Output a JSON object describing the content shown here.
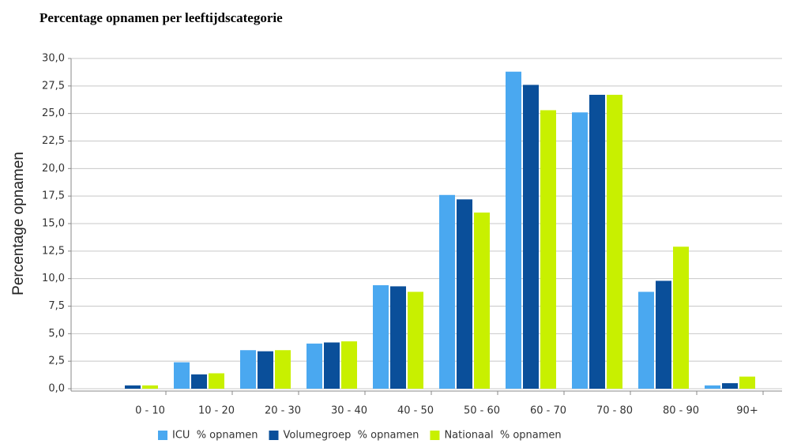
{
  "chart_data": {
    "type": "bar",
    "title": "Percentage opnamen per leeftijdscategorie",
    "y_label": "Percentage opnamen",
    "categories": [
      "0 - 10",
      "10 - 20",
      "20 - 30",
      "30 - 40",
      "40 - 50",
      "50 - 60",
      "60 - 70",
      "70 - 80",
      "80 - 90",
      "90+"
    ],
    "series": [
      {
        "name": "ICU  % opnamen",
        "color": "#4aa8f0",
        "values": [
          0,
          2.4,
          3.5,
          4.1,
          9.4,
          17.6,
          28.8,
          25.1,
          8.8,
          0.3
        ]
      },
      {
        "name": "Volumegroep  % opnamen",
        "color": "#0a4f9a",
        "values": [
          0.3,
          1.3,
          3.4,
          4.2,
          9.3,
          17.2,
          27.6,
          26.7,
          9.8,
          0.5
        ]
      },
      {
        "name": "Nationaal  % opnamen",
        "color": "#c8f000",
        "values": [
          0.3,
          1.4,
          3.5,
          4.3,
          8.8,
          16.0,
          25.3,
          26.7,
          12.9,
          1.1
        ]
      }
    ],
    "ylim": [
      0,
      30
    ],
    "yticks": [
      {
        "value": 0,
        "label": "0,0"
      },
      {
        "value": 2.5,
        "label": "2,5"
      },
      {
        "value": 5,
        "label": "5,0"
      },
      {
        "value": 7.5,
        "label": "7,5"
      },
      {
        "value": 10,
        "label": "10,0"
      },
      {
        "value": 12.5,
        "label": "12,5"
      },
      {
        "value": 15,
        "label": "15,0"
      },
      {
        "value": 17.5,
        "label": "17,5"
      },
      {
        "value": 20,
        "label": "20,0"
      },
      {
        "value": 22.5,
        "label": "22,5"
      },
      {
        "value": 25,
        "label": "25,0"
      },
      {
        "value": 27.5,
        "label": "27,5"
      },
      {
        "value": 30,
        "label": "30,0"
      }
    ],
    "grid": true,
    "legend": "bottom"
  }
}
